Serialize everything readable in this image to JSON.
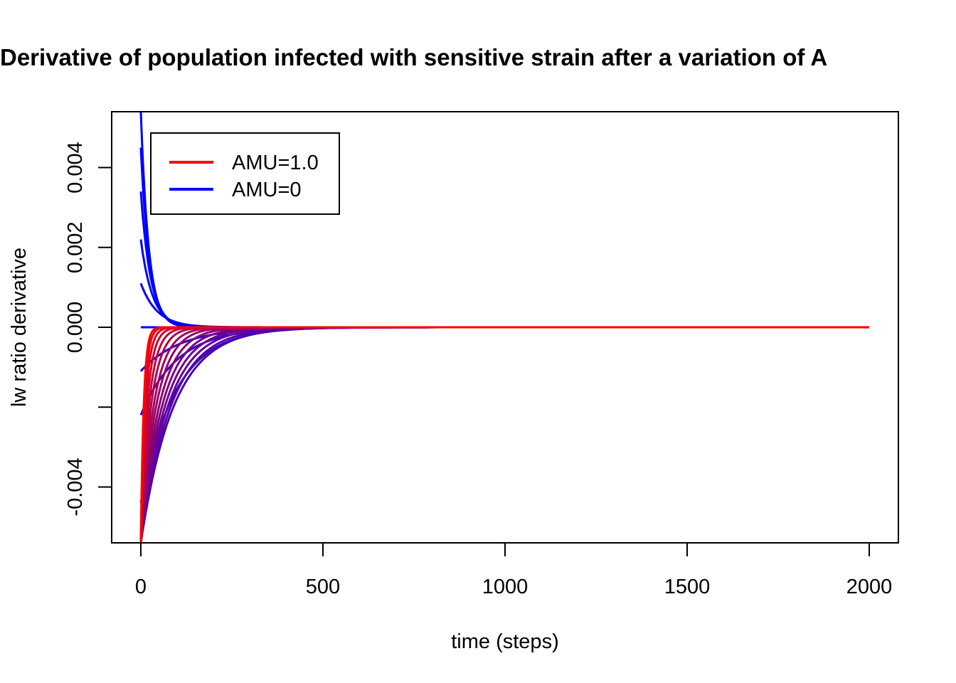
{
  "chart_data": {
    "type": "line",
    "title": "Derivative of population infected with sensitive strain after a variation of  A",
    "xlabel": "time (steps)",
    "ylabel": "lw ratio derivative",
    "xlim": [
      -80,
      2080
    ],
    "ylim": [
      -0.0054,
      0.0054
    ],
    "x_ticks": [
      0,
      500,
      1000,
      1500,
      2000
    ],
    "x_tick_labels": [
      "0",
      "500",
      "1000",
      "1500",
      "2000"
    ],
    "y_ticks": [
      -0.004,
      -0.002,
      0.0,
      0.002,
      0.004
    ],
    "y_tick_labels": [
      "-0.004",
      "",
      "0.000",
      "0.002",
      "0.004"
    ],
    "grid": false,
    "legend_position": "top-left",
    "legend": [
      {
        "label": "AMU=1.0",
        "color": "#ff0000"
      },
      {
        "label": "AMU=0",
        "color": "#0000ff"
      }
    ],
    "series": [
      {
        "color": "#0000ff",
        "start": 0.0054,
        "t_end": 1000,
        "tau": 22
      },
      {
        "color": "#0000ff",
        "start": 0.0045,
        "t_end": 1000,
        "tau": 24
      },
      {
        "color": "#0000ff",
        "start": 0.0034,
        "t_end": 1000,
        "tau": 27
      },
      {
        "color": "#0000ff",
        "start": 0.0022,
        "t_end": 1000,
        "tau": 32
      },
      {
        "color": "#0000ff",
        "start": 0.0011,
        "t_end": 1000,
        "tau": 45
      },
      {
        "color": "#0000ff",
        "start": 0.0,
        "t_end": 1000,
        "tau": 40
      },
      {
        "color": "#1f00df",
        "start": -0.0011,
        "t_end": 1920,
        "tau": 110
      },
      {
        "color": "#2c00d2",
        "start": -0.0022,
        "t_end": 1920,
        "tau": 100
      },
      {
        "color": "#3800c6",
        "start": -0.0044,
        "t_end": 1920,
        "tau": 95
      },
      {
        "color": "#4800b6",
        "start": -0.0054,
        "t_end": 1920,
        "tau": 90
      },
      {
        "color": "#5500a9",
        "start": -0.0054,
        "t_end": 1920,
        "tau": 82
      },
      {
        "color": "#62009c",
        "start": -0.0054,
        "t_end": 1920,
        "tau": 74
      },
      {
        "color": "#700090",
        "start": -0.0054,
        "t_end": 1920,
        "tau": 66
      },
      {
        "color": "#7d0081",
        "start": -0.0054,
        "t_end": 1920,
        "tau": 58
      },
      {
        "color": "#8a0074",
        "start": -0.0054,
        "t_end": 1920,
        "tau": 50
      },
      {
        "color": "#980066",
        "start": -0.0054,
        "t_end": 1920,
        "tau": 42
      },
      {
        "color": "#a60058",
        "start": -0.0054,
        "t_end": 1920,
        "tau": 35
      },
      {
        "color": "#b4004a",
        "start": -0.0054,
        "t_end": 1920,
        "tau": 28
      },
      {
        "color": "#c2003c",
        "start": -0.0054,
        "t_end": 2000,
        "tau": 22
      },
      {
        "color": "#d0002e",
        "start": -0.0054,
        "t_end": 2000,
        "tau": 17
      },
      {
        "color": "#df0020",
        "start": -0.0054,
        "t_end": 2000,
        "tau": 13
      },
      {
        "color": "#ee0011",
        "start": -0.0054,
        "t_end": 2000,
        "tau": 10
      },
      {
        "color": "#ff0000",
        "start": -0.0054,
        "t_end": 2000,
        "tau": 8
      }
    ]
  }
}
